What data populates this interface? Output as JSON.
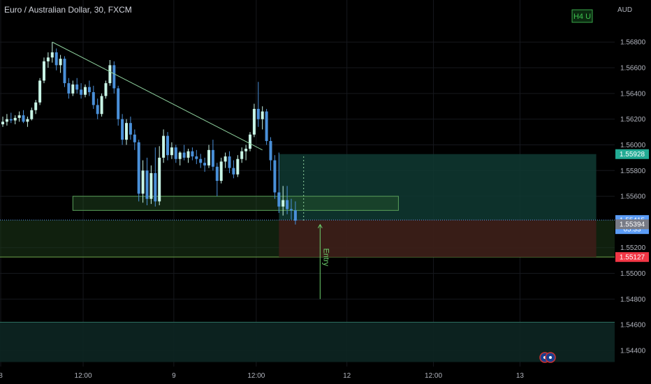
{
  "header": {
    "symbol_title": "Euro / Australian Dollar, 30, FXCM",
    "currency": "AUD",
    "timeframe_badge": "H4 U"
  },
  "colors": {
    "background": "#000000",
    "grid": "#16181d",
    "candle_up": "#c8f5e6",
    "candle_down": "#4a90d9",
    "target_zone": "#0f3a33",
    "stop_zone": "#3b1d18",
    "support_zone": "#1d3a1a",
    "lower_zone": "#0d2622",
    "trendline": "#8fd19e",
    "entry_label": "#6ed36e",
    "tag_target": "#22ab94",
    "tag_current": "#5b9cf6",
    "tag_entry": "#787b86",
    "tag_stop": "#f23645"
  },
  "chart_data": {
    "type": "candlestick",
    "title": "Euro / Australian Dollar, 30, FXCM",
    "y_axis": {
      "label": "AUD",
      "range": [
        1.5434,
        1.5691
      ],
      "ticks": [
        "1.56800",
        "1.56600",
        "1.56400",
        "1.56200",
        "1.56000",
        "1.55800",
        "1.55600",
        "1.55200",
        "1.55000",
        "1.54800",
        "1.54600",
        "1.54400"
      ]
    },
    "x_axis": {
      "ticks": [
        "8",
        "12:00",
        "9",
        "12:00",
        "12",
        "12:00",
        "13"
      ]
    },
    "candles": [
      [
        1.5616,
        1.5622,
        1.5614,
        1.5618
      ],
      [
        1.5618,
        1.5624,
        1.5615,
        1.562
      ],
      [
        1.562,
        1.5625,
        1.5617,
        1.5619
      ],
      [
        1.5619,
        1.5623,
        1.5616,
        1.5621
      ],
      [
        1.5621,
        1.5626,
        1.5618,
        1.5623
      ],
      [
        1.5623,
        1.5627,
        1.5617,
        1.5618
      ],
      [
        1.5618,
        1.5622,
        1.5614,
        1.562
      ],
      [
        1.562,
        1.5629,
        1.5619,
        1.5627
      ],
      [
        1.5627,
        1.5635,
        1.5624,
        1.5633
      ],
      [
        1.5633,
        1.5652,
        1.5631,
        1.565
      ],
      [
        1.565,
        1.5668,
        1.5648,
        1.5665
      ],
      [
        1.5665,
        1.5672,
        1.566,
        1.5668
      ],
      [
        1.5668,
        1.568,
        1.5664,
        1.5672
      ],
      [
        1.5672,
        1.5675,
        1.5658,
        1.5662
      ],
      [
        1.5662,
        1.567,
        1.5656,
        1.5667
      ],
      [
        1.5667,
        1.5669,
        1.5645,
        1.5648
      ],
      [
        1.5648,
        1.5652,
        1.5636,
        1.564
      ],
      [
        1.564,
        1.565,
        1.5638,
        1.5647
      ],
      [
        1.5647,
        1.5652,
        1.564,
        1.5643
      ],
      [
        1.5643,
        1.5648,
        1.5636,
        1.5639
      ],
      [
        1.5639,
        1.5647,
        1.5637,
        1.5645
      ],
      [
        1.5645,
        1.565,
        1.5638,
        1.5641
      ],
      [
        1.5641,
        1.5646,
        1.5628,
        1.5631
      ],
      [
        1.5631,
        1.5636,
        1.562,
        1.5624
      ],
      [
        1.5624,
        1.564,
        1.5622,
        1.5638
      ],
      [
        1.5638,
        1.565,
        1.5636,
        1.5648
      ],
      [
        1.5648,
        1.5666,
        1.5646,
        1.5662
      ],
      [
        1.5662,
        1.5665,
        1.564,
        1.5644
      ],
      [
        1.5644,
        1.5646,
        1.5615,
        1.562
      ],
      [
        1.562,
        1.5624,
        1.56,
        1.5604
      ],
      [
        1.5604,
        1.562,
        1.56,
        1.5617
      ],
      [
        1.5617,
        1.5622,
        1.5604,
        1.5608
      ],
      [
        1.5608,
        1.5612,
        1.5596,
        1.5602
      ],
      [
        1.5602,
        1.5604,
        1.5556,
        1.5562
      ],
      [
        1.5562,
        1.5588,
        1.5555,
        1.558
      ],
      [
        1.558,
        1.559,
        1.5553,
        1.5558
      ],
      [
        1.5558,
        1.5584,
        1.5554,
        1.5578
      ],
      [
        1.5578,
        1.5598,
        1.5552,
        1.5556
      ],
      [
        1.5556,
        1.5599,
        1.5553,
        1.559
      ],
      [
        1.559,
        1.5612,
        1.5586,
        1.5607
      ],
      [
        1.5607,
        1.561,
        1.5588,
        1.5592
      ],
      [
        1.5592,
        1.5602,
        1.5589,
        1.5598
      ],
      [
        1.5598,
        1.56,
        1.5586,
        1.5589
      ],
      [
        1.5589,
        1.5595,
        1.5584,
        1.5594
      ],
      [
        1.5594,
        1.56,
        1.5588,
        1.559
      ],
      [
        1.559,
        1.5597,
        1.5586,
        1.5595
      ],
      [
        1.5595,
        1.5598,
        1.5588,
        1.5591
      ],
      [
        1.5591,
        1.5596,
        1.5585,
        1.5589
      ],
      [
        1.5589,
        1.5593,
        1.5582,
        1.5586
      ],
      [
        1.5586,
        1.559,
        1.5579,
        1.5584
      ],
      [
        1.5584,
        1.56,
        1.5582,
        1.5596
      ],
      [
        1.5596,
        1.5604,
        1.558,
        1.5583
      ],
      [
        1.5583,
        1.5586,
        1.556,
        1.5572
      ],
      [
        1.5572,
        1.559,
        1.557,
        1.5587
      ],
      [
        1.5587,
        1.5594,
        1.5582,
        1.5591
      ],
      [
        1.5591,
        1.5595,
        1.5578,
        1.5582
      ],
      [
        1.5582,
        1.5588,
        1.5574,
        1.5577
      ],
      [
        1.5577,
        1.5592,
        1.5575,
        1.5589
      ],
      [
        1.5589,
        1.5598,
        1.5586,
        1.5595
      ],
      [
        1.5595,
        1.56,
        1.5588,
        1.5597
      ],
      [
        1.5597,
        1.561,
        1.5595,
        1.5608
      ],
      [
        1.5608,
        1.5632,
        1.5606,
        1.5628
      ],
      [
        1.5628,
        1.5649,
        1.5614,
        1.562
      ],
      [
        1.562,
        1.563,
        1.5612,
        1.5626
      ],
      [
        1.5626,
        1.5628,
        1.56,
        1.5603
      ],
      [
        1.5603,
        1.5606,
        1.558,
        1.5588
      ],
      [
        1.5588,
        1.5592,
        1.5558,
        1.5563
      ],
      [
        1.5563,
        1.5594,
        1.5547,
        1.5552
      ],
      [
        1.5552,
        1.5568,
        1.5545,
        1.5557
      ],
      [
        1.5557,
        1.5568,
        1.5546,
        1.555
      ],
      [
        1.555,
        1.5558,
        1.5542,
        1.5549
      ],
      [
        1.5549,
        1.5556,
        1.5538,
        1.5541
      ]
    ],
    "trendline": {
      "from": [
        12,
        1.568
      ],
      "to": [
        63,
        1.5596
      ]
    },
    "zones": {
      "resistance_box": {
        "x_from": 17,
        "x_to": 96,
        "price_from": 1.5549,
        "price_to": 1.556
      },
      "long_target": {
        "x_from": 67,
        "x_to": 144,
        "price_from": 1.55415,
        "price_to": 1.55928
      },
      "long_stop": {
        "x_from": 67,
        "x_to": 144,
        "price_from": 1.55127,
        "price_to": 1.55415
      },
      "support_band": {
        "price_from": 1.55127,
        "price_to": 1.55415
      },
      "lower_band": {
        "price_from": 1.5431,
        "price_to": 1.5462
      }
    },
    "entry_marker": {
      "x": 77,
      "price_from": 1.548,
      "price_to": 1.5538,
      "label": "Entry"
    },
    "time_positions": [
      -0.5,
      19.5,
      41.5,
      61.5,
      83.5,
      104.5,
      125.5
    ],
    "price_tags": {
      "target": {
        "price": 1.55928,
        "text": "1.55928"
      },
      "current": {
        "price": 1.55415,
        "text": "1.55415",
        "countdown": "05:33"
      },
      "entry": {
        "price": 1.55394,
        "text": "1.55394"
      },
      "stop": {
        "price": 1.55127,
        "text": "1.55127"
      }
    },
    "grid": true
  }
}
